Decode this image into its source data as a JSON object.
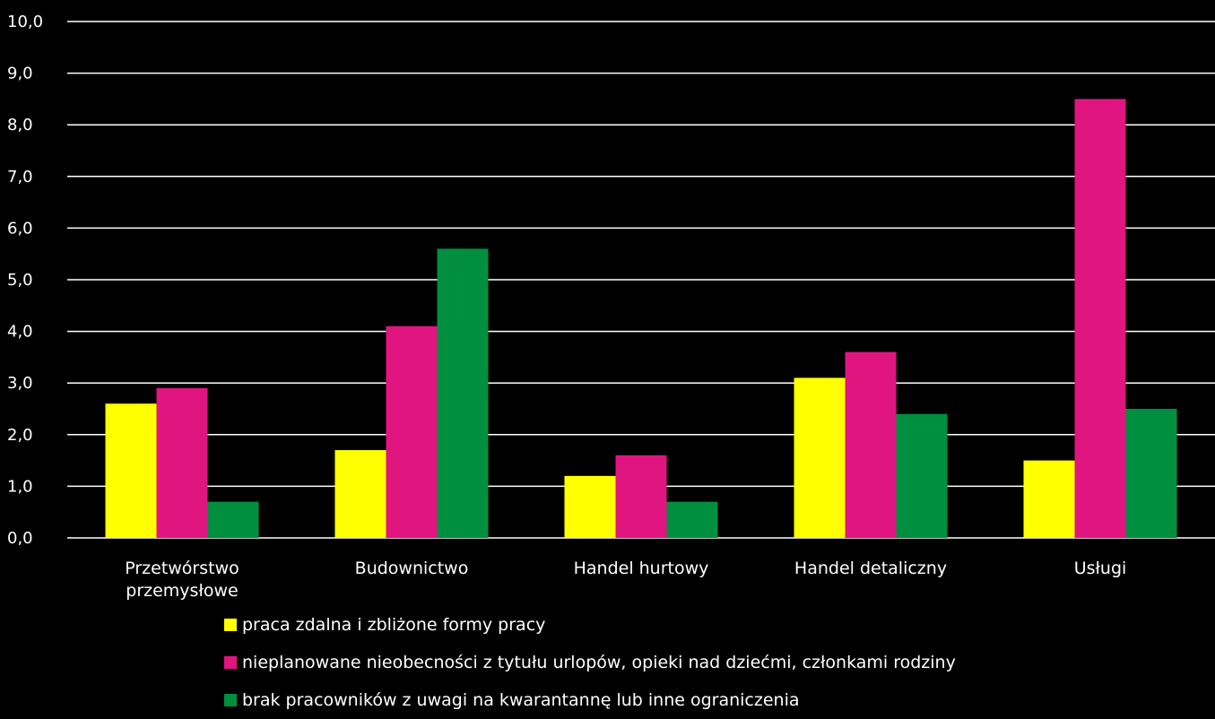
{
  "chart_data": {
    "type": "bar",
    "categories": [
      [
        "Przetwórstwo",
        "przemysłowe"
      ],
      [
        "Budownictwo"
      ],
      [
        "Handel hurtowy"
      ],
      [
        "Handel detaliczny"
      ],
      [
        "Usługi"
      ]
    ],
    "series": [
      {
        "name": "praca zdalna i zbliżone formy pracy",
        "color": "#ffff00",
        "values": [
          2.6,
          1.7,
          1.2,
          3.1,
          1.5
        ]
      },
      {
        "name": "nieplanowane nieobecności z tytułu urlopów, opieki nad dziećmi, członkami rodziny",
        "color": "#e0157f",
        "values": [
          2.9,
          4.1,
          1.6,
          3.6,
          8.5
        ]
      },
      {
        "name": "brak pracowników z uwagi na kwarantannę lub inne ograniczenia",
        "color": "#008f3f",
        "values": [
          0.7,
          5.6,
          0.7,
          2.4,
          2.5
        ]
      }
    ],
    "ylim": [
      0,
      10
    ],
    "yticks": [
      "0,0",
      "1,0",
      "2,0",
      "3,0",
      "4,0",
      "5,0",
      "6,0",
      "7,0",
      "8,0",
      "9,0",
      "10,0"
    ],
    "grid": true,
    "legend_position": "bottom",
    "background": "#000000",
    "title": "",
    "xlabel": "",
    "ylabel": ""
  }
}
